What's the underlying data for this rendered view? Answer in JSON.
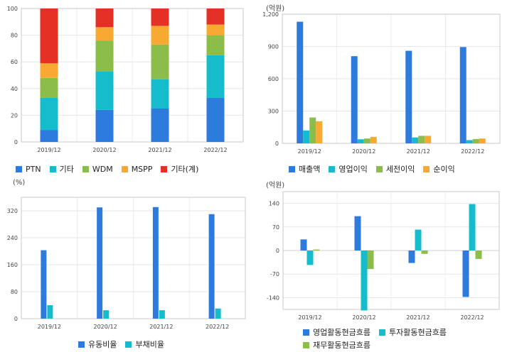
{
  "chart_data": [
    {
      "id": "sales-mix",
      "type": "bar",
      "stacked": true,
      "unit_label": "",
      "categories": [
        "2019/12",
        "2020/12",
        "2021/12",
        "2022/12"
      ],
      "ylim": [
        0,
        100
      ],
      "yticks": [
        0,
        20,
        40,
        60,
        80,
        100
      ],
      "grid": true,
      "legend_position": "bottom",
      "series": [
        {
          "name": "PTN",
          "color": "#2e7bde",
          "values": [
            9,
            24,
            25,
            33
          ]
        },
        {
          "name": "기타",
          "color": "#17bccc",
          "values": [
            24,
            29,
            22,
            32
          ]
        },
        {
          "name": "WDM",
          "color": "#8cbd4a",
          "values": [
            15,
            23,
            26,
            15
          ]
        },
        {
          "name": "MSPP",
          "color": "#f8a931",
          "values": [
            11,
            10,
            14,
            8
          ]
        },
        {
          "name": "기타(계)",
          "color": "#e43025",
          "values": [
            41,
            14,
            13,
            12
          ]
        }
      ]
    },
    {
      "id": "income",
      "type": "bar",
      "unit_label": "(억원)",
      "categories": [
        "2019/12",
        "2020/12",
        "2021/12",
        "2022/12"
      ],
      "ylim": [
        0,
        1200
      ],
      "yticks": [
        0,
        300,
        600,
        900,
        1200
      ],
      "ytick_labels": [
        "0",
        "300",
        "600",
        "900",
        "1,200"
      ],
      "grid": true,
      "legend_position": "bottom",
      "series": [
        {
          "name": "매출액",
          "color": "#2e7bde",
          "values": [
            1130,
            810,
            860,
            895
          ]
        },
        {
          "name": "영업이익",
          "color": "#17bccc",
          "values": [
            120,
            38,
            55,
            30
          ]
        },
        {
          "name": "세전이익",
          "color": "#8cbd4a",
          "values": [
            240,
            45,
            70,
            40
          ]
        },
        {
          "name": "순이익",
          "color": "#f8a931",
          "values": [
            205,
            60,
            70,
            45
          ]
        }
      ]
    },
    {
      "id": "ratios",
      "type": "bar",
      "unit_label": "(%)",
      "categories": [
        "2019/12",
        "2020/12",
        "2021/12",
        "2022/12"
      ],
      "ylim": [
        0,
        360
      ],
      "yticks": [
        0,
        80,
        160,
        240,
        320
      ],
      "grid": true,
      "legend_position": "bottom",
      "series": [
        {
          "name": "유동비율",
          "color": "#2e7bde",
          "values": [
            203,
            330,
            331,
            310
          ]
        },
        {
          "name": "부채비율",
          "color": "#17bccc",
          "values": [
            40,
            25,
            25,
            30
          ]
        }
      ]
    },
    {
      "id": "cashflow",
      "type": "bar",
      "unit_label": "(억원)",
      "categories": [
        "2019/12",
        "2020/12",
        "2021/12",
        "2022/12"
      ],
      "ylim": [
        -175,
        175
      ],
      "yticks": [
        -140,
        -70,
        0,
        70,
        140
      ],
      "grid": true,
      "legend_position": "bottom",
      "series": [
        {
          "name": "영업활동현금흐름",
          "color": "#2e7bde",
          "values": [
            33,
            102,
            -37,
            -138
          ]
        },
        {
          "name": "투자활동현금흐름",
          "color": "#17bccc",
          "values": [
            -43,
            -178,
            62,
            138
          ]
        },
        {
          "name": "재무활동현금흐름",
          "color": "#8cbd4a",
          "values": [
            3,
            -55,
            -10,
            -25
          ]
        }
      ]
    }
  ]
}
